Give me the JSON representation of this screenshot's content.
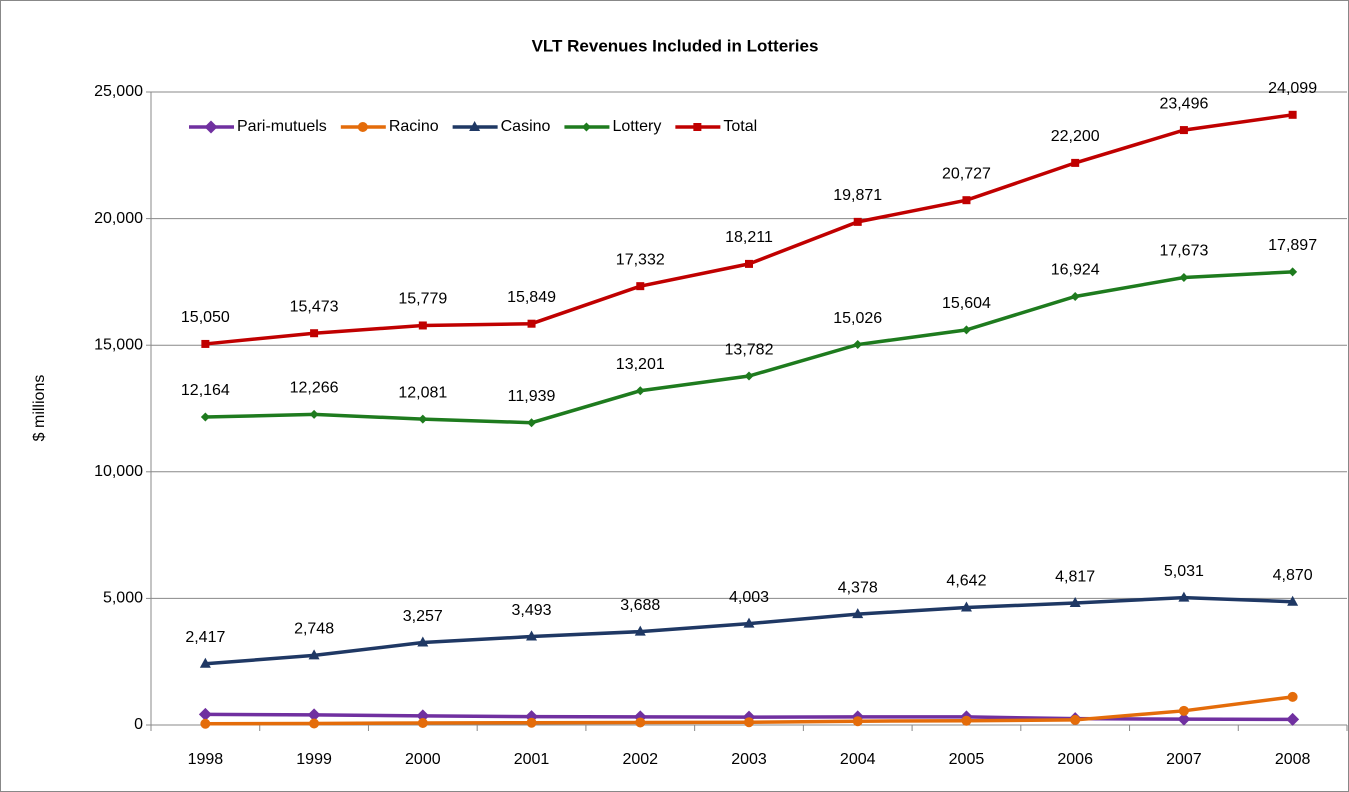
{
  "chart_data": {
    "type": "line",
    "title": "VLT Revenues Included in Lotteries",
    "y_label": "$ millions",
    "categories": [
      "1998",
      "1999",
      "2000",
      "2001",
      "2002",
      "2003",
      "2004",
      "2005",
      "2006",
      "2007",
      "2008"
    ],
    "ylim": [
      0,
      25000
    ],
    "yticks": [
      0,
      {
        "value": 5000,
        "label": "5,000"
      },
      {
        "value": 10000,
        "label": "10,000"
      },
      {
        "value": 15000,
        "label": "15,000"
      },
      {
        "value": 20000,
        "label": "20,000"
      },
      {
        "value": 25000,
        "label": "25,000"
      }
    ],
    "grid": true,
    "legend": "top-left",
    "series": [
      {
        "name": "Pari-mutuels",
        "color": "#7030a0",
        "marker": "diamond",
        "values": [
          420,
          400,
          360,
          330,
          320,
          310,
          320,
          320,
          250,
          230,
          220
        ]
      },
      {
        "name": "Racino",
        "color": "#e46c0a",
        "marker": "circle",
        "values": [
          50,
          60,
          80,
          90,
          100,
          110,
          150,
          170,
          200,
          560,
          1110
        ]
      },
      {
        "name": "Casino",
        "color": "#1f3864",
        "marker": "triangle",
        "values": [
          2417,
          2748,
          3257,
          3493,
          3688,
          4003,
          4378,
          4642,
          4817,
          5031,
          4870
        ],
        "value_labels": [
          "2,417",
          "2,748",
          "3,257",
          "3,493",
          "3,688",
          "4,003",
          "4,378",
          "4,642",
          "4,817",
          "5,031",
          "4,870"
        ]
      },
      {
        "name": "Lottery",
        "color": "#1e7b1e",
        "marker": "small-diamond",
        "values": [
          12164,
          12266,
          12081,
          11939,
          13201,
          13782,
          15026,
          15604,
          16924,
          17673,
          17897
        ],
        "value_labels": [
          "12,164",
          "12,266",
          "12,081",
          "11,939",
          "13,201",
          "13,782",
          "15,026",
          "15,604",
          "16,924",
          "17,673",
          "17,897"
        ]
      },
      {
        "name": "Total",
        "color": "#c00000",
        "marker": "square",
        "values": [
          15050,
          15473,
          15779,
          15849,
          17332,
          18211,
          19871,
          20727,
          22200,
          23496,
          24099
        ],
        "value_labels": [
          "15,050",
          "15,473",
          "15,779",
          "15,849",
          "17,332",
          "18,211",
          "19,871",
          "20,727",
          "22,200",
          "23,496",
          "24,099"
        ]
      }
    ]
  }
}
